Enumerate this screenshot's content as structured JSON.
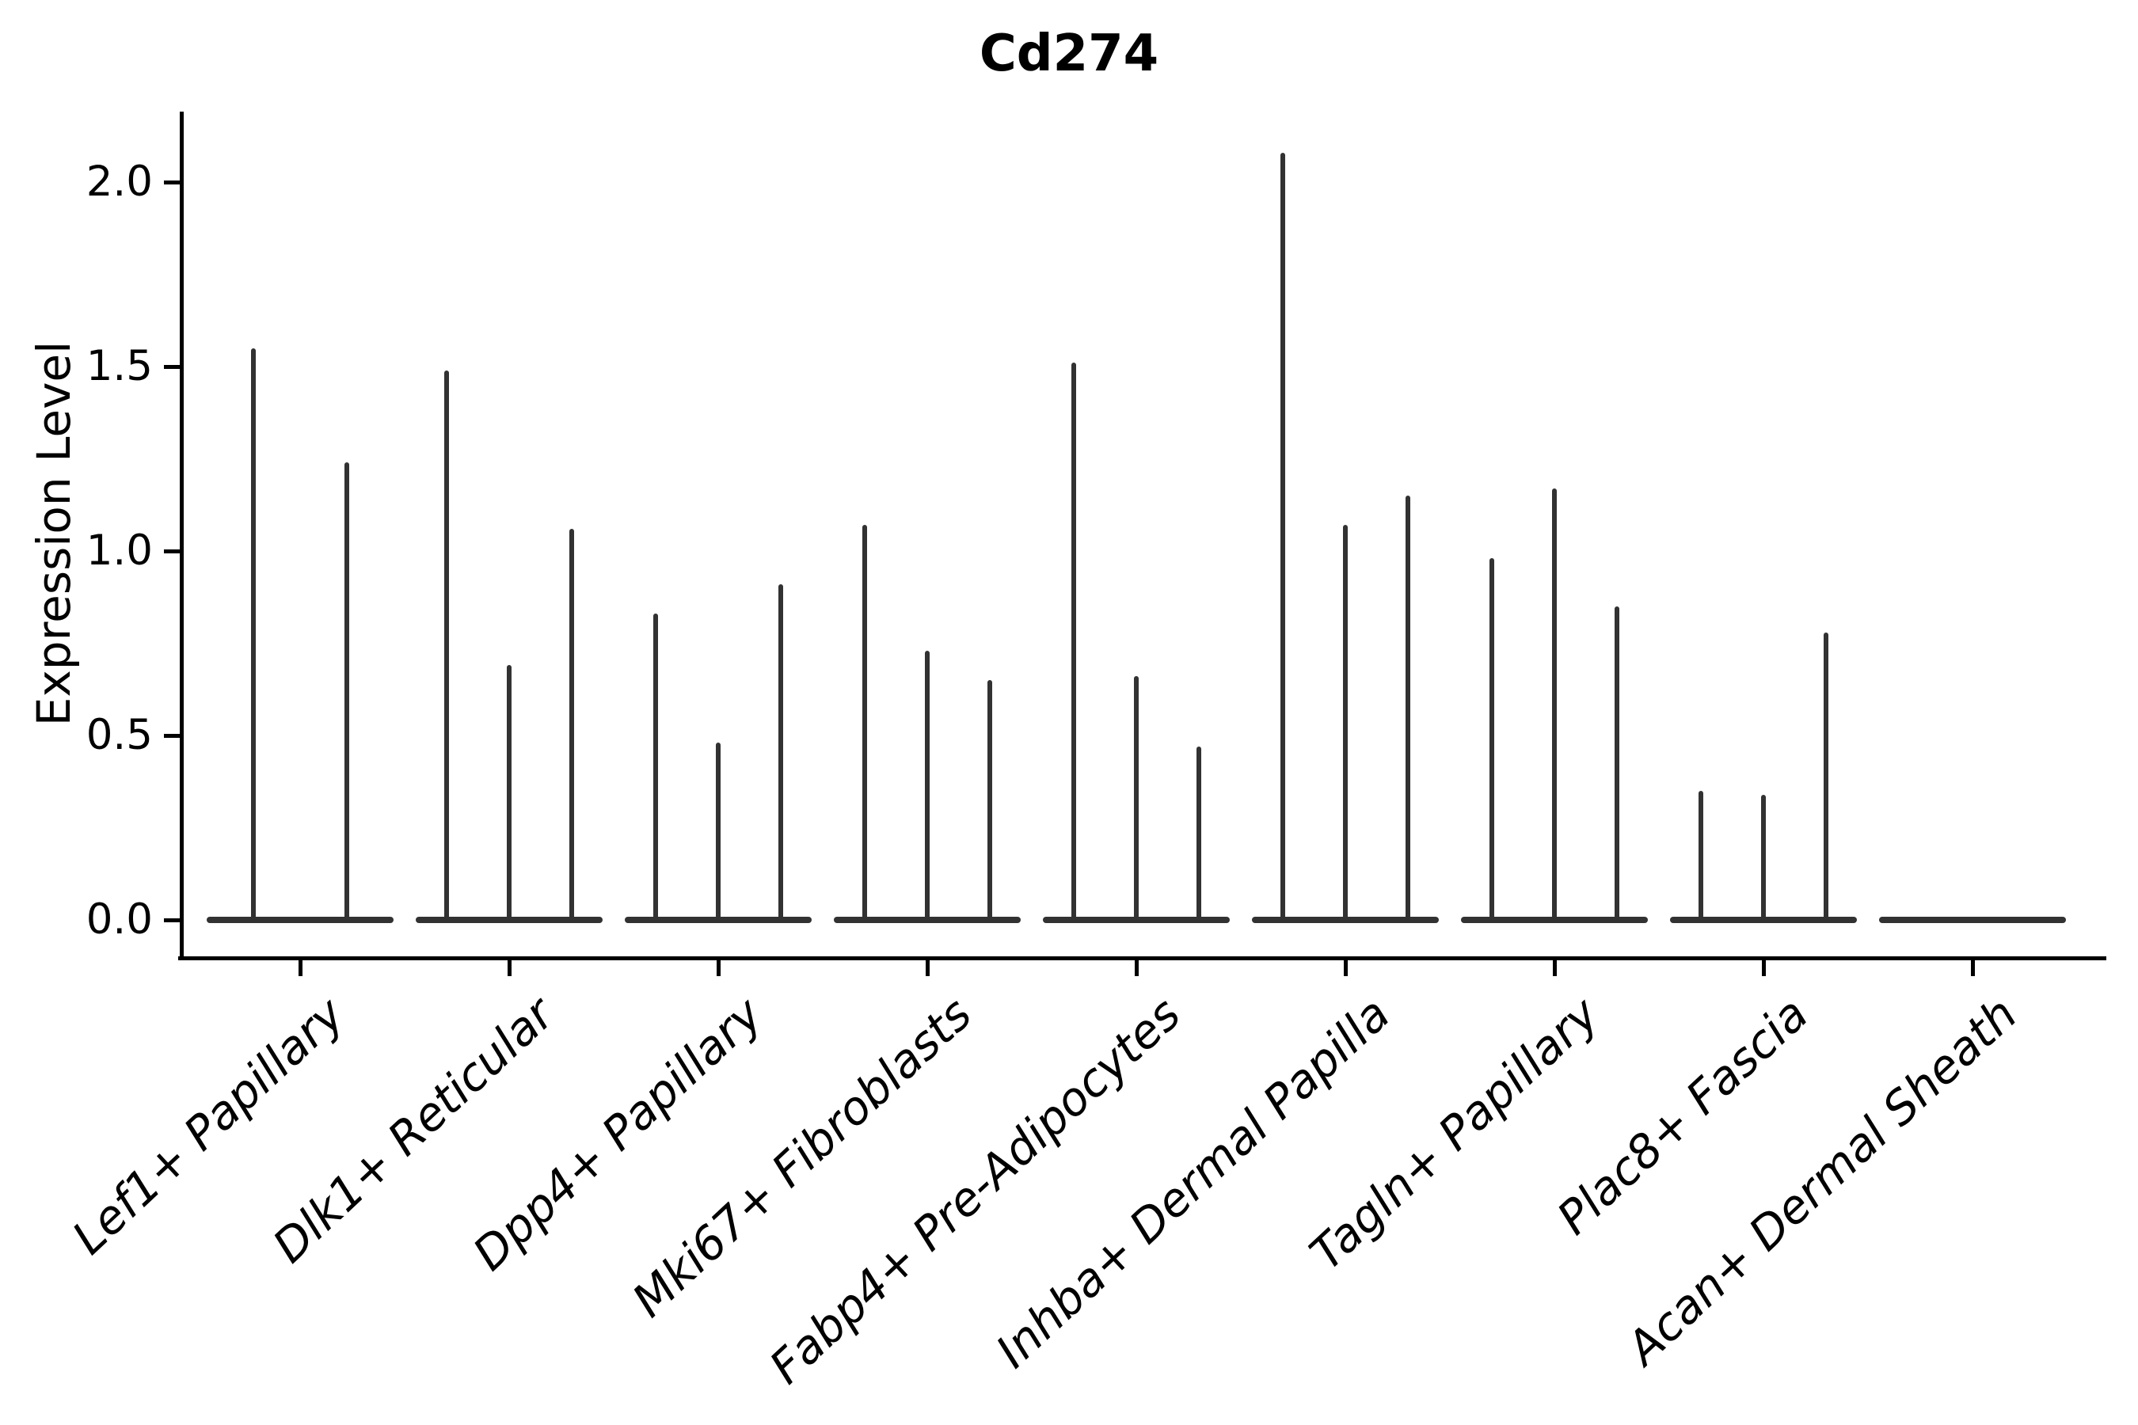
{
  "figure": {
    "background_color": "#ffffff"
  },
  "chart_data": {
    "type": "violin",
    "title": "Cd274",
    "xlabel": "",
    "ylabel": "Expression Level",
    "ylim": [
      -0.11,
      2.19
    ],
    "yticks": [
      0.0,
      0.5,
      1.0,
      1.5,
      2.0
    ],
    "ytick_labels": [
      "0.0",
      "0.5",
      "1.0",
      "1.5",
      "2.0"
    ],
    "grid": false,
    "legend_position": "none",
    "categories": [
      "Lef1+ Papillary",
      "Dlk1+ Reticular",
      "Dpp4+ Papillary",
      "Mki67+ Fibroblasts",
      "Fabp4+ Pre-Adipocytes",
      "Inhba+ Dermal Papilla",
      "Tagln+ Papillary",
      "Plac8+ Fascia",
      "Acan+ Dermal Sheath"
    ],
    "series": [
      {
        "category": "Lef1+ Papillary",
        "violin_max_values": [
          1.55,
          1.24
        ]
      },
      {
        "category": "Dlk1+ Reticular",
        "violin_max_values": [
          1.49,
          0.69,
          1.06
        ]
      },
      {
        "category": "Dpp4+ Papillary",
        "violin_max_values": [
          0.83,
          0.48,
          0.91
        ]
      },
      {
        "category": "Mki67+ Fibroblasts",
        "violin_max_values": [
          1.07,
          0.73,
          0.65
        ]
      },
      {
        "category": "Fabp4+ Pre-Adipocytes",
        "violin_max_values": [
          1.51,
          0.66,
          0.47
        ]
      },
      {
        "category": "Inhba+ Dermal Papilla",
        "violin_max_values": [
          2.08,
          1.07,
          1.15
        ]
      },
      {
        "category": "Tagln+ Papillary",
        "violin_max_values": [
          0.98,
          1.17,
          0.85
        ]
      },
      {
        "category": "Plac8+ Fascia",
        "violin_max_values": [
          0.35,
          0.34,
          0.78
        ]
      },
      {
        "category": "Acan+ Dermal Sheath",
        "violin_max_values": []
      }
    ],
    "baseline_value": 0.0,
    "style": {
      "violin_line_color": "#323232",
      "spine_color": "#000000",
      "text_color": "#000000",
      "x_label_rotation_deg": -43,
      "x_label_style": "italic"
    }
  }
}
